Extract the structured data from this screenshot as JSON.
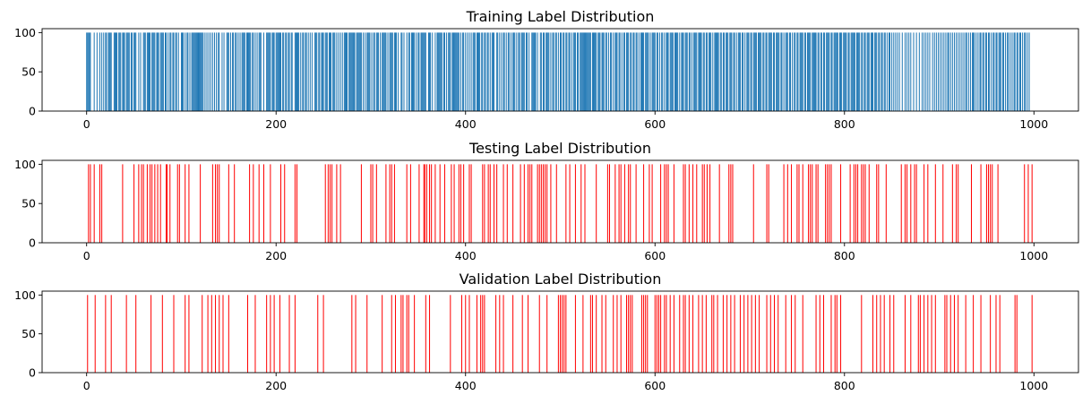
{
  "chart_data": [
    {
      "type": "bar",
      "title": "Training Label Distribution",
      "xlabel": "",
      "ylabel": "",
      "color": "#1f77b4",
      "xlim": [
        -47,
        1047
      ],
      "ylim": [
        0,
        105
      ],
      "xticks": [
        0,
        200,
        400,
        600,
        800,
        1000
      ],
      "yticks": [
        0,
        50,
        100
      ],
      "bar_value": 100,
      "x": [
        0,
        1,
        2,
        3,
        4,
        8,
        11,
        14,
        16,
        18,
        20,
        21,
        23,
        24,
        25,
        26,
        29,
        30,
        31,
        32,
        34,
        35,
        36,
        38,
        39,
        40,
        42,
        43,
        44,
        45,
        47,
        48,
        50,
        51,
        52,
        55,
        57,
        60,
        61,
        62,
        64,
        65,
        66,
        67,
        69,
        70,
        71,
        72,
        74,
        75,
        76,
        78,
        79,
        80,
        81,
        83,
        84,
        86,
        88,
        89,
        91,
        92,
        94,
        95,
        97,
        100,
        101,
        102,
        104,
        106,
        107,
        109,
        111,
        112,
        113,
        114,
        115,
        116,
        117,
        118,
        119,
        120,
        121,
        122,
        123,
        125,
        127,
        129,
        131,
        133,
        135,
        137,
        139,
        140,
        143,
        145,
        148,
        149,
        150,
        152,
        154,
        155,
        157,
        158,
        160,
        162,
        164,
        165,
        166,
        167,
        169,
        170,
        171,
        172,
        173,
        175,
        176,
        178,
        180,
        182,
        183,
        184,
        187,
        190,
        191,
        192,
        193,
        194,
        196,
        197,
        198,
        200,
        201,
        202,
        203,
        204,
        205,
        207,
        208,
        210,
        211,
        213,
        214,
        216,
        217,
        220,
        221,
        222,
        223,
        224,
        226,
        228,
        229,
        231,
        232,
        234,
        236,
        238,
        241,
        242,
        243,
        245,
        246,
        248,
        249,
        250,
        252,
        253,
        254,
        256,
        257,
        258,
        260,
        261,
        262,
        264,
        266,
        268,
        270,
        272,
        273,
        274,
        275,
        277,
        278,
        279,
        280,
        281,
        282,
        283,
        285,
        286,
        287,
        288,
        289,
        290,
        292,
        294,
        296,
        297,
        298,
        299,
        301,
        303,
        304,
        306,
        307,
        308,
        310,
        312,
        313,
        314,
        315,
        316,
        318,
        320,
        321,
        322,
        323,
        325,
        326,
        327,
        329,
        332,
        333,
        335,
        338,
        340,
        341,
        343,
        344,
        345,
        346,
        348,
        350,
        351,
        353,
        354,
        355,
        356,
        357,
        358,
        361,
        362,
        363,
        365,
        368,
        370,
        371,
        372,
        373,
        374,
        375,
        377,
        378,
        380,
        382,
        383,
        384,
        386,
        387,
        388,
        389,
        390,
        391,
        392,
        393,
        395,
        397,
        398,
        400,
        402,
        404,
        406,
        408,
        409,
        410,
        412,
        413,
        414,
        415,
        417,
        418,
        420,
        421,
        423,
        424,
        426,
        428,
        429,
        430,
        433,
        434,
        436,
        438,
        440,
        441,
        443,
        445,
        446,
        448,
        450,
        451,
        452,
        454,
        456,
        457,
        459,
        460,
        461,
        462,
        464,
        465,
        467,
        470,
        471,
        472,
        473,
        474,
        476,
        479,
        480,
        482,
        483,
        485,
        486,
        487,
        488,
        490,
        492,
        493,
        495,
        496,
        498,
        500,
        501,
        503,
        504,
        506,
        507,
        509,
        510,
        512,
        514,
        515,
        516,
        518,
        519,
        521,
        522,
        523,
        524,
        525,
        526,
        527,
        528,
        529,
        530,
        531,
        532,
        534,
        535,
        536,
        537,
        538,
        540,
        541,
        542,
        544,
        545,
        546,
        548,
        549,
        551,
        553,
        554,
        556,
        558,
        559,
        560,
        562,
        563,
        565,
        567,
        568,
        570,
        571,
        572,
        574,
        575,
        577,
        578,
        580,
        581,
        583,
        585,
        586,
        587,
        588,
        590,
        591,
        592,
        593,
        595,
        597,
        598,
        599,
        600,
        602,
        603,
        605,
        607,
        608,
        610,
        612,
        613,
        614,
        616,
        617,
        618,
        619,
        621,
        622,
        623,
        624,
        626,
        628,
        629,
        630,
        632,
        633,
        634,
        636,
        637,
        639,
        641,
        642,
        643,
        644,
        646,
        647,
        648,
        649,
        651,
        652,
        654,
        655,
        657,
        658,
        659,
        661,
        663,
        664,
        665,
        666,
        667,
        669,
        670,
        672,
        673,
        675,
        676,
        677,
        679,
        680,
        681,
        683,
        684,
        686,
        688,
        689,
        690,
        692,
        693,
        695,
        697,
        698,
        699,
        701,
        702,
        704,
        705,
        706,
        707,
        709,
        710,
        711,
        712,
        714,
        715,
        717,
        718,
        720,
        721,
        722,
        723,
        725,
        726,
        728,
        729,
        730,
        731,
        733,
        734,
        736,
        738,
        739,
        740,
        742,
        743,
        745,
        747,
        748,
        750,
        751,
        753,
        754,
        755,
        756,
        758,
        759,
        761,
        762,
        763,
        764,
        766,
        767,
        768,
        769,
        770,
        772,
        773,
        775,
        776,
        778,
        779,
        781,
        782,
        783,
        784,
        786,
        787,
        789,
        790,
        791,
        792,
        793,
        795,
        796,
        797,
        799,
        800,
        801,
        802,
        804,
        805,
        807,
        808,
        809,
        810,
        811,
        813,
        814,
        815,
        816,
        818,
        819,
        821,
        822,
        824,
        825,
        826,
        828,
        829,
        830,
        832,
        833,
        834,
        836,
        837,
        839,
        840,
        842,
        843,
        845,
        847,
        848,
        850,
        852,
        854,
        856,
        858,
        861,
        864,
        866,
        868,
        870,
        873,
        876,
        879,
        882,
        884,
        886,
        888,
        890,
        893,
        895,
        897,
        899,
        901,
        903,
        905,
        907,
        909,
        910,
        912,
        914,
        916,
        918,
        920,
        922,
        924,
        926,
        928,
        929,
        931,
        933,
        935,
        936,
        937,
        939,
        941,
        943,
        944,
        946,
        947,
        949,
        950,
        952,
        953,
        955,
        957,
        958,
        960,
        961,
        963,
        964,
        965,
        967,
        968,
        970,
        972,
        973,
        975,
        977,
        979,
        980,
        982,
        983,
        985,
        986,
        988,
        990,
        991,
        993,
        995
      ]
    },
    {
      "type": "bar",
      "title": "Testing Label Distribution",
      "xlabel": "",
      "ylabel": "",
      "color": "#ff0000",
      "xlim": [
        -47,
        1047
      ],
      "ylim": [
        0,
        105
      ],
      "xticks": [
        0,
        200,
        400,
        600,
        800,
        1000
      ],
      "yticks": [
        0,
        50,
        100
      ],
      "bar_value": 100,
      "x": [
        2,
        4,
        8,
        14,
        16,
        38,
        50,
        55,
        58,
        60,
        64,
        67,
        69,
        72,
        75,
        78,
        84,
        85,
        88,
        96,
        98,
        104,
        108,
        120,
        133,
        136,
        138,
        140,
        150,
        156,
        172,
        176,
        182,
        187,
        194,
        205,
        209,
        220,
        222,
        252,
        255,
        257,
        259,
        264,
        268,
        290,
        300,
        302,
        306,
        316,
        320,
        322,
        325,
        338,
        342,
        351,
        356,
        357,
        359,
        362,
        364,
        368,
        373,
        378,
        385,
        388,
        393,
        395,
        398,
        404,
        406,
        418,
        420,
        424,
        426,
        430,
        433,
        440,
        444,
        450,
        458,
        462,
        466,
        468,
        470,
        476,
        478,
        480,
        482,
        484,
        486,
        490,
        496,
        506,
        510,
        516,
        522,
        526,
        538,
        550,
        552,
        558,
        562,
        564,
        568,
        572,
        574,
        580,
        588,
        594,
        597,
        606,
        610,
        612,
        614,
        620,
        630,
        632,
        636,
        640,
        644,
        650,
        652,
        655,
        658,
        668,
        678,
        680,
        682,
        704,
        718,
        720,
        736,
        740,
        744,
        750,
        752,
        756,
        762,
        764,
        766,
        770,
        772,
        780,
        782,
        784,
        786,
        796,
        806,
        810,
        812,
        814,
        818,
        820,
        822,
        826,
        834,
        836,
        844,
        860,
        864,
        866,
        870,
        874,
        876,
        884,
        888,
        896,
        904,
        914,
        918,
        920,
        934,
        944,
        950,
        952,
        954,
        956,
        962,
        990,
        994,
        998
      ]
    },
    {
      "type": "bar",
      "title": "Validation Label Distribution",
      "xlabel": "",
      "ylabel": "",
      "color": "#ff0000",
      "xlim": [
        -47,
        1047
      ],
      "ylim": [
        0,
        105
      ],
      "xticks": [
        0,
        200,
        400,
        600,
        800,
        1000
      ],
      "yticks": [
        0,
        50,
        100
      ],
      "bar_value": 100,
      "x": [
        1,
        9,
        20,
        26,
        42,
        52,
        68,
        80,
        92,
        104,
        108,
        122,
        128,
        132,
        136,
        140,
        144,
        150,
        170,
        178,
        190,
        194,
        198,
        204,
        214,
        220,
        244,
        250,
        280,
        284,
        296,
        312,
        322,
        326,
        332,
        334,
        338,
        340,
        346,
        358,
        362,
        384,
        396,
        400,
        404,
        412,
        416,
        418,
        420,
        432,
        436,
        440,
        450,
        460,
        466,
        478,
        486,
        498,
        500,
        502,
        504,
        506,
        516,
        524,
        532,
        534,
        538,
        544,
        548,
        556,
        560,
        564,
        570,
        572,
        574,
        576,
        586,
        588,
        590,
        592,
        600,
        602,
        604,
        606,
        610,
        612,
        616,
        620,
        626,
        630,
        632,
        636,
        640,
        646,
        650,
        654,
        660,
        662,
        666,
        672,
        676,
        680,
        684,
        690,
        694,
        698,
        702,
        706,
        710,
        718,
        722,
        726,
        730,
        738,
        744,
        748,
        756,
        770,
        774,
        778,
        786,
        790,
        792,
        796,
        818,
        830,
        834,
        838,
        842,
        848,
        852,
        864,
        870,
        878,
        880,
        884,
        888,
        892,
        896,
        906,
        908,
        912,
        916,
        920,
        928,
        936,
        944,
        954,
        960,
        964,
        980,
        982,
        998
      ]
    }
  ]
}
